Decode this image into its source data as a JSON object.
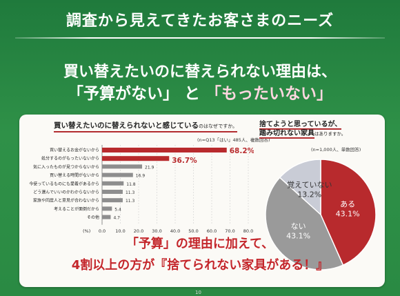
{
  "header": {
    "title": "調査から見えてきたお客さまのニーズ"
  },
  "headline": {
    "line1": "買い替えたいのに替えられない理由は、",
    "line2_a": "「予算がない」",
    "line2_b": "と",
    "line2_c": "「もったいない」"
  },
  "bar_chart": {
    "title": "買い替えたいのに替えられないと感じている",
    "title_suffix": "のはなぜですか。",
    "note": "(n=Q13「はい」485人、複数回答)"
  },
  "pie_chart": {
    "title_line1": "捨てようと思っているが、",
    "title_line2": "踏み切れない家具",
    "title_suffix": "はありますか。",
    "note": "(n=1,000人、単数回答)"
  },
  "conclusion": {
    "line1": "「予算」の理由に加えて、",
    "line2": "4割以上の方が『捨てられない家具がある！』"
  },
  "page_number": "10",
  "colors": {
    "accent_red": "#b82a2d",
    "bar_gray": "#8e8e8e",
    "pie_gray": "#9a9a9a",
    "bg_green": "#2a8a43"
  },
  "chart_data": [
    {
      "type": "bar",
      "orientation": "horizontal",
      "categories": [
        "買い替えるお金がないから",
        "処分するのがもったいないから",
        "気に入ったものが見つからないから",
        "買い替える時間がないから",
        "今使っているものにも愛着があるから",
        "どう選んでいいのかわからないから",
        "家族や同居人と意見が合わないから",
        "考えることが面倒だから",
        "その他"
      ],
      "values": [
        68.2,
        36.7,
        21.9,
        16.9,
        11.8,
        11.3,
        11.3,
        5.4,
        4.7
      ],
      "value_labels": [
        "68.2%",
        "36.7%",
        "21.9",
        "16.9",
        "11.8",
        "11.3",
        "11.3",
        "5.4",
        "4.7"
      ],
      "highlighted": [
        true,
        true,
        false,
        false,
        false,
        false,
        false,
        false,
        false
      ],
      "xlim": [
        0,
        80
      ],
      "xticks": [
        "0.0",
        "10.0",
        "20.0",
        "30.0",
        "40.0",
        "50.0",
        "60.0",
        "70.0",
        "80.0"
      ],
      "xunit": "(%)"
    },
    {
      "type": "pie",
      "labels": [
        "ある",
        "ない",
        "覚えていない"
      ],
      "values": [
        43.1,
        43.1,
        13.2
      ],
      "value_labels": [
        "43.1%",
        "43.1%",
        "13.2%"
      ],
      "colors": [
        "#b82a2d",
        "#9a9a9a",
        "#c9ccd6"
      ]
    }
  ]
}
